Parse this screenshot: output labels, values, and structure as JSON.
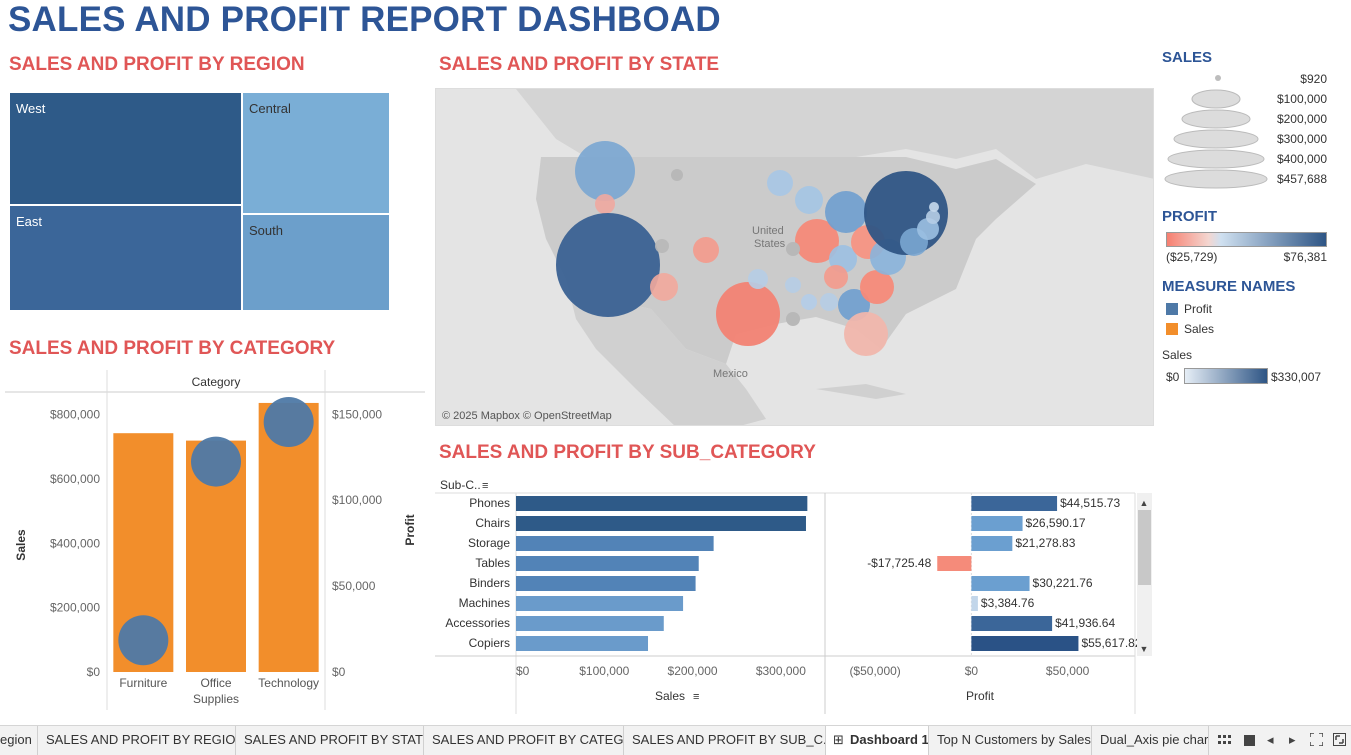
{
  "dashboard_title": "SALES AND PROFIT REPORT DASHBOAD",
  "region_section": {
    "title": "SALES AND PROFIT BY REGION",
    "cells": [
      {
        "label": "West",
        "color": "#2e5a88"
      },
      {
        "label": "East",
        "color": "#3b6699"
      },
      {
        "label": "Central",
        "color": "#7aaed6"
      },
      {
        "label": "South",
        "color": "#6c9fcb"
      }
    ]
  },
  "state_section": {
    "title": "SALES AND PROFIT BY STATE",
    "labels": {
      "us": "United\nStates",
      "mexico": "Mexico"
    },
    "attribution": "© 2025 Mapbox © OpenStreetMap"
  },
  "category_section": {
    "title": "SALES AND PROFIT BY CATEGORY",
    "header": "Category",
    "left_axis_label": "Sales",
    "right_axis_label": "Profit",
    "left_ticks": [
      "$800,000",
      "$600,000",
      "$400,000",
      "$200,000",
      "$0"
    ],
    "right_ticks": [
      "$150,000",
      "$100,000",
      "$50,000",
      "$0"
    ]
  },
  "subcat_section": {
    "title": "SALES AND PROFIT BY SUB_CATEGORY",
    "header": "Sub-C..",
    "sales_axis_label": "Sales",
    "profit_axis_label": "Profit",
    "sales_ticks": [
      "$0",
      "$100,000",
      "$200,000",
      "$300,000"
    ],
    "profit_ticks": [
      "($50,000)",
      "$0",
      "$50,000"
    ]
  },
  "legends": {
    "sales_title": "SALES",
    "sales_sizes": [
      "$920",
      "$100,000",
      "$200,000",
      "$300,000",
      "$400,000",
      "$457,688"
    ],
    "profit_title": "PROFIT",
    "profit_min": "($25,729)",
    "profit_max": "$76,381",
    "measure_title": "MEASURE NAMES",
    "measure_items": [
      {
        "label": "Profit",
        "color": "#4e79a7"
      },
      {
        "label": "Sales",
        "color": "#f28e2b"
      }
    ],
    "sales_gradient_title": "Sales",
    "sales_gradient_min": "$0",
    "sales_gradient_max": "$330,007"
  },
  "tabs": [
    {
      "label": "egion",
      "active": false
    },
    {
      "label": "SALES AND PROFIT BY REGION",
      "active": false
    },
    {
      "label": "SALES AND PROFIT BY STATE",
      "active": false
    },
    {
      "label": "SALES AND PROFIT BY CATEG...",
      "active": false
    },
    {
      "label": "SALES AND PROFIT BY SUB_C...",
      "active": false
    },
    {
      "label": "Dashboard 1",
      "active": true
    },
    {
      "label": "Top N Customers by Sales",
      "active": false
    },
    {
      "label": "Dual_Axis pie chart",
      "active": false
    }
  ],
  "chart_data": [
    {
      "type": "bar",
      "title": "SALES AND PROFIT BY CATEGORY",
      "xlabel": "Category",
      "ylabel": "Sales",
      "y2label": "Profit",
      "categories": [
        "Furniture",
        "Office Supplies",
        "Technology"
      ],
      "series": [
        {
          "name": "Sales",
          "values": [
            742000,
            719000,
            836000
          ],
          "axis": "left",
          "mark": "bar",
          "color": "#f28e2b"
        },
        {
          "name": "Profit",
          "values": [
            18500,
            122500,
            145500
          ],
          "axis": "right",
          "mark": "circle",
          "color": "#4e79a7"
        }
      ],
      "ylim": [
        0,
        870000
      ],
      "y2lim": [
        0,
        163000
      ]
    },
    {
      "type": "bar",
      "title": "SALES AND PROFIT BY SUB_CATEGORY",
      "categories": [
        "Phones",
        "Chairs",
        "Storage",
        "Tables",
        "Binders",
        "Machines",
        "Accessories",
        "Copiers"
      ],
      "series": [
        {
          "name": "Sales",
          "values": [
            330007,
            328450,
            223844,
            206966,
            203413,
            189239,
            167380,
            149528
          ]
        },
        {
          "name": "Profit",
          "values": [
            44515.73,
            26590.17,
            21278.83,
            -17725.48,
            30221.76,
            3384.76,
            41936.64,
            55617.82
          ]
        }
      ],
      "profit_labels": [
        "$44,515.73",
        "$26,590.17",
        "$21,278.83",
        "-$17,725.48",
        "$30,221.76",
        "$3,384.76",
        "$41,936.64",
        "$55,617.82"
      ],
      "xlim_sales": [
        0,
        350000
      ],
      "xlim_profit": [
        -75000,
        85000
      ]
    }
  ]
}
